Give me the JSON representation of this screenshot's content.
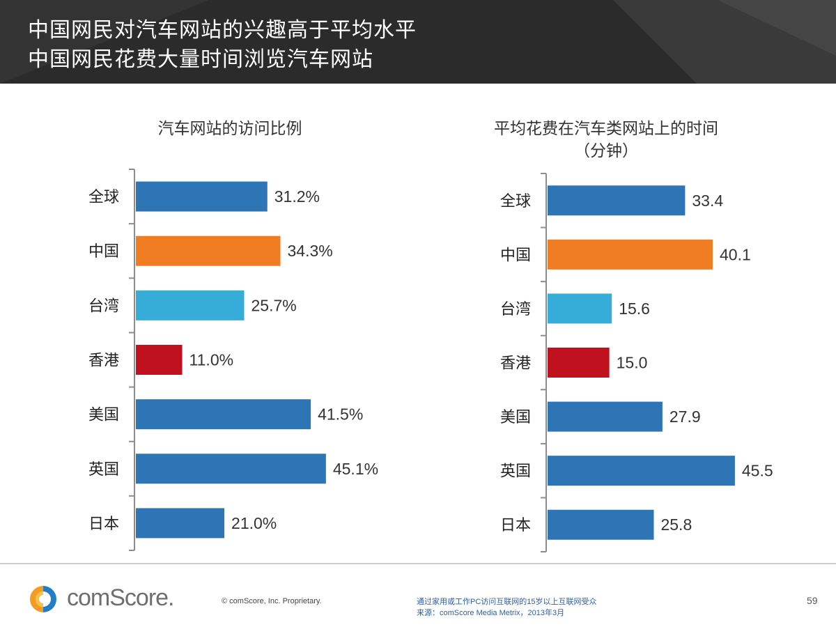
{
  "header": {
    "title_line1": "中国网民对汽车网站的兴趣高于平均水平",
    "title_line2": "中国网民花费大量时间浏览汽车网站"
  },
  "chart_data": [
    {
      "type": "bar",
      "orientation": "horizontal",
      "title": "汽车网站的访问比例",
      "categories": [
        "全球",
        "中国",
        "台湾",
        "香港",
        "美国",
        "英国",
        "日本"
      ],
      "values": [
        31.2,
        34.3,
        25.7,
        11.0,
        41.5,
        45.1,
        21.0
      ],
      "value_labels": [
        "31.2%",
        "34.3%",
        "25.7%",
        "11.0%",
        "41.5%",
        "45.1%",
        "21.0%"
      ],
      "bar_colors": [
        "#2e75b6",
        "#f07d22",
        "#36acd9",
        "#c0111f",
        "#2e75b6",
        "#2e75b6",
        "#2e75b6"
      ],
      "unit": "%",
      "xlim": [
        0,
        50
      ]
    },
    {
      "type": "bar",
      "orientation": "horizontal",
      "title": "平均花费在汽车类网站上的时间",
      "subtitle": "（分钟）",
      "categories": [
        "全球",
        "中国",
        "台湾",
        "香港",
        "美国",
        "英国",
        "日本"
      ],
      "values": [
        33.4,
        40.1,
        15.6,
        15.0,
        27.9,
        45.5,
        25.8
      ],
      "value_labels": [
        "33.4",
        "40.1",
        "15.6",
        "15.0",
        "27.9",
        "45.5",
        "25.8"
      ],
      "bar_colors": [
        "#2e75b6",
        "#f07d22",
        "#36acd9",
        "#c0111f",
        "#2e75b6",
        "#2e75b6",
        "#2e75b6"
      ],
      "unit": "minutes",
      "xlim": [
        0,
        50
      ]
    }
  ],
  "footer": {
    "logo_text": "comScore.",
    "copyright": "© comScore, Inc.    Proprietary.",
    "note_line1": "通过家用或工作PC访问互联网的15岁以上互联网受众",
    "note_line2": "来源：comScore Media Metrix，2013年3月",
    "page_number": "59"
  }
}
